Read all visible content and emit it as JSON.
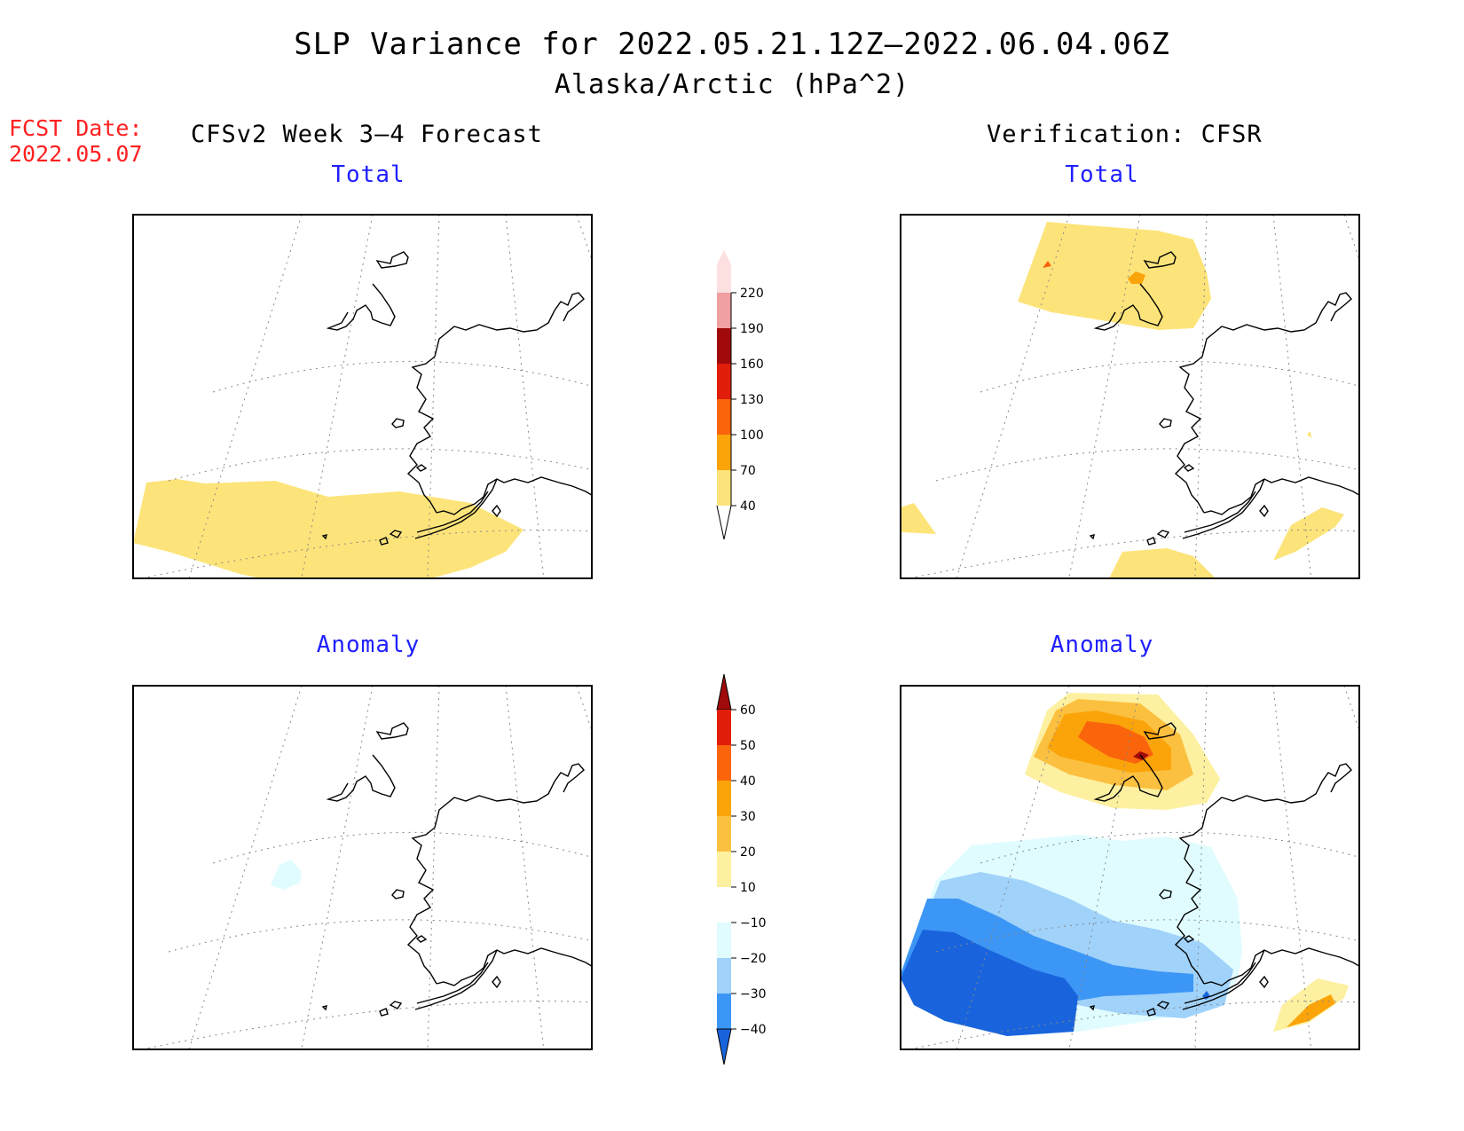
{
  "title": "SLP Variance for 2022.05.21.12Z–2022.06.04.06Z",
  "subtitle": "Alaska/Arctic (hPa^2)",
  "forecast_date": {
    "label": "FCST Date:",
    "value": "2022.05.07"
  },
  "columns": {
    "left": "CFSv2 Week 3–4 Forecast",
    "right": "Verification: CFSR"
  },
  "panels": {
    "forecast_total": "Total",
    "verification_total": "Total",
    "forecast_anomaly": "Anomaly",
    "verification_anomaly": "Anomaly"
  },
  "colorbars": {
    "total": {
      "levels": [
        "40",
        "70",
        "100",
        "130",
        "160",
        "190",
        "220"
      ],
      "colors": [
        "#fde47a",
        "#fba40a",
        "#fa640a",
        "#e01e0a",
        "#a00a0a",
        "#f0a0a0",
        "#fce0e0"
      ]
    },
    "anomaly": {
      "levels": [
        "60",
        "50",
        "40",
        "30",
        "20",
        "10",
        "−10",
        "−20",
        "−30",
        "−40"
      ],
      "colors": [
        "#a00a0a",
        "#e01e0a",
        "#fa640a",
        "#fba40a",
        "#fcc040",
        "#fdf0a0",
        "#ffffff",
        "#e0fcff",
        "#a0d2fa",
        "#3c96f5",
        "#1964dc"
      ]
    }
  },
  "colors": {
    "fcst_text": "#ff2020",
    "panel_title": "#2020ff"
  }
}
